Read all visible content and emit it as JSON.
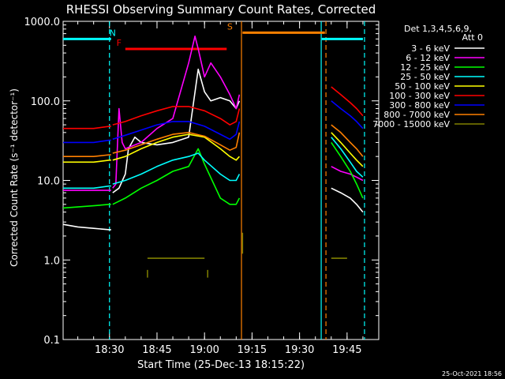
{
  "chart_data": {
    "type": "line",
    "title": "RHESSI Observing Summary Count Rates, Corrected",
    "ylabel": "Corrected Count Rate (s⁻¹ detector⁻¹)",
    "xlabel": "Start Time (25-Dec-13 18:15:22)",
    "y_scale": "log",
    "ylim": [
      0.1,
      1000
    ],
    "xlim": [
      "18:15:22",
      "19:55:00"
    ],
    "yticks": [
      "0.1",
      "1.0",
      "10.0",
      "100.0",
      "1000.0"
    ],
    "xticks": [
      "18:30",
      "18:45",
      "19:00",
      "19:15",
      "19:30",
      "19:45"
    ],
    "legend_header": [
      "Det 1,3,4,5,6,9,",
      "Att 0"
    ],
    "legend_position": "right",
    "timestamp": "25-Oct-2021 18:56",
    "annotations": [
      {
        "text": "N",
        "time": "18:31",
        "color": "#00ffff"
      },
      {
        "text": "F",
        "time": "18:33",
        "color": "#ff0000"
      },
      {
        "text": "S",
        "time": "19:08",
        "color": "#ff8000"
      }
    ],
    "bars": [
      {
        "label": "N",
        "color": "#00ffff",
        "level": 600,
        "segments": [
          [
            "18:15:22",
            "18:30:30"
          ],
          [
            "19:37:00",
            "19:50:00"
          ]
        ]
      },
      {
        "label": "F",
        "color": "#ff0000",
        "level": 450,
        "segments": [
          [
            "18:35:00",
            "19:07:00"
          ]
        ]
      },
      {
        "label": "S",
        "color": "#ff8000",
        "level": 720,
        "segments": [
          [
            "19:12:00",
            "19:38:00"
          ]
        ]
      }
    ],
    "vlines": [
      {
        "time": "18:30:00",
        "color": "#00ffff",
        "style": "dashed"
      },
      {
        "time": "19:11:40",
        "color": "#ff8000",
        "style": "solid"
      },
      {
        "time": "19:36:50",
        "color": "#00ffff",
        "style": "solid"
      },
      {
        "time": "19:38:20",
        "color": "#ff8000",
        "style": "dashed"
      },
      {
        "time": "19:50:30",
        "color": "#00ffff",
        "style": "dashed"
      }
    ],
    "series": [
      {
        "name": "3 - 6 keV",
        "color": "#ffffff",
        "segments": [
          {
            "x": [
              "18:15:22",
              "18:20",
              "18:25",
              "18:30",
              "18:30:30"
            ],
            "y": [
              2.8,
              2.6,
              2.5,
              2.4,
              2.4
            ]
          },
          {
            "x": [
              "18:31",
              "18:33",
              "18:35",
              "18:36",
              "18:38",
              "18:40",
              "18:45",
              "18:50",
              "18:55",
              "18:58",
              "19:00",
              "19:02",
              "19:05",
              "19:08",
              "19:10",
              "19:11"
            ],
            "y": [
              7,
              8,
              12,
              25,
              35,
              30,
              28,
              30,
              35,
              250,
              130,
              100,
              110,
              100,
              80,
              100
            ]
          },
          {
            "x": [
              "19:40",
              "19:43",
              "19:46",
              "19:48",
              "19:50"
            ],
            "y": [
              8,
              7,
              6,
              5,
              4
            ]
          }
        ]
      },
      {
        "name": "6 - 12 keV",
        "color": "#ff00ff",
        "segments": [
          {
            "x": [
              "18:15:22",
              "18:25",
              "18:30",
              "18:30:30"
            ],
            "y": [
              7.5,
              7.5,
              7.5,
              7.5
            ]
          },
          {
            "x": [
              "18:31",
              "18:32",
              "18:33",
              "18:34",
              "18:35",
              "18:40",
              "18:45",
              "18:50",
              "18:55",
              "18:57",
              "18:58",
              "19:00",
              "19:02",
              "19:05",
              "19:08",
              "19:10",
              "19:11"
            ],
            "y": [
              8,
              9,
              80,
              30,
              25,
              30,
              45,
              60,
              300,
              650,
              450,
              200,
              300,
              200,
              120,
              80,
              120
            ]
          },
          {
            "x": [
              "19:40",
              "19:43",
              "19:46",
              "19:48",
              "19:50"
            ],
            "y": [
              15,
              13,
              12,
              11,
              10
            ]
          }
        ]
      },
      {
        "name": "12 - 25 keV",
        "color": "#00ff00",
        "segments": [
          {
            "x": [
              "18:15:22",
              "18:25",
              "18:30",
              "18:30:30"
            ],
            "y": [
              4.5,
              4.8,
              5,
              5
            ]
          },
          {
            "x": [
              "18:31",
              "18:35",
              "18:40",
              "18:45",
              "18:50",
              "18:55",
              "18:58",
              "19:00",
              "19:05",
              "19:08",
              "19:10",
              "19:11"
            ],
            "y": [
              5,
              6,
              8,
              10,
              13,
              15,
              25,
              16,
              6,
              5,
              5,
              6
            ]
          },
          {
            "x": [
              "19:40",
              "19:43",
              "19:46",
              "19:48",
              "19:50"
            ],
            "y": [
              30,
              20,
              13,
              9,
              6
            ]
          }
        ]
      },
      {
        "name": "25 - 50 keV",
        "color": "#00ffff",
        "segments": [
          {
            "x": [
              "18:15:22",
              "18:25",
              "18:30",
              "18:30:30"
            ],
            "y": [
              8,
              8,
              8.5,
              8.5
            ]
          },
          {
            "x": [
              "18:31",
              "18:35",
              "18:40",
              "18:45",
              "18:50",
              "18:55",
              "18:58",
              "19:00",
              "19:05",
              "19:08",
              "19:10",
              "19:11"
            ],
            "y": [
              9,
              10,
              12,
              15,
              18,
              20,
              22,
              18,
              12,
              10,
              10,
              12
            ]
          },
          {
            "x": [
              "19:40",
              "19:43",
              "19:46",
              "19:48",
              "19:50"
            ],
            "y": [
              35,
              25,
              17,
              13,
              11
            ]
          }
        ]
      },
      {
        "name": "50 - 100 keV",
        "color": "#ffff00",
        "segments": [
          {
            "x": [
              "18:15:22",
              "18:25",
              "18:30",
              "18:30:30"
            ],
            "y": [
              17,
              17,
              18,
              18
            ]
          },
          {
            "x": [
              "18:31",
              "18:35",
              "18:40",
              "18:45",
              "18:50",
              "18:55",
              "19:00",
              "19:05",
              "19:08",
              "19:10",
              "19:11"
            ],
            "y": [
              18,
              20,
              25,
              30,
              35,
              38,
              35,
              25,
              20,
              18,
              20
            ]
          },
          {
            "x": [
              "19:40",
              "19:43",
              "19:46",
              "19:48",
              "19:50"
            ],
            "y": [
              40,
              30,
              22,
              18,
              15
            ]
          }
        ]
      },
      {
        "name": "100 - 300 keV",
        "color": "#ff0000",
        "segments": [
          {
            "x": [
              "18:15:22",
              "18:25",
              "18:30",
              "18:30:30"
            ],
            "y": [
              45,
              45,
              48,
              48
            ]
          },
          {
            "x": [
              "18:31",
              "18:35",
              "18:40",
              "18:45",
              "18:50",
              "18:55",
              "19:00",
              "19:05",
              "19:08",
              "19:10",
              "19:11"
            ],
            "y": [
              50,
              55,
              65,
              75,
              85,
              85,
              75,
              60,
              50,
              55,
              80
            ]
          },
          {
            "x": [
              "19:40",
              "19:43",
              "19:46",
              "19:48",
              "19:50"
            ],
            "y": [
              150,
              120,
              95,
              80,
              65
            ]
          }
        ]
      },
      {
        "name": "300 - 800 keV",
        "color": "#0000ff",
        "segments": [
          {
            "x": [
              "18:15:22",
              "18:25",
              "18:30",
              "18:30:30"
            ],
            "y": [
              30,
              30,
              32,
              32
            ]
          },
          {
            "x": [
              "18:31",
              "18:35",
              "18:40",
              "18:45",
              "18:50",
              "18:55",
              "19:00",
              "19:05",
              "19:08",
              "19:10",
              "19:11"
            ],
            "y": [
              33,
              37,
              43,
              50,
              55,
              55,
              48,
              38,
              33,
              38,
              55
            ]
          },
          {
            "x": [
              "19:40",
              "19:43",
              "19:46",
              "19:48",
              "19:50"
            ],
            "y": [
              100,
              80,
              65,
              55,
              45
            ]
          }
        ]
      },
      {
        "name": "800 - 7000 keV",
        "color": "#ff8000",
        "segments": [
          {
            "x": [
              "18:15:22",
              "18:25",
              "18:30",
              "18:30:30"
            ],
            "y": [
              20,
              20,
              21,
              21
            ]
          },
          {
            "x": [
              "18:31",
              "18:35",
              "18:40",
              "18:45",
              "18:50",
              "18:55",
              "19:00",
              "19:05",
              "19:08",
              "19:10",
              "19:11"
            ],
            "y": [
              22,
              24,
              28,
              33,
              38,
              40,
              36,
              28,
              24,
              26,
              40
            ]
          },
          {
            "x": [
              "19:40",
              "19:43",
              "19:46",
              "19:48",
              "19:50"
            ],
            "y": [
              50,
              40,
              30,
              25,
              20
            ]
          }
        ]
      },
      {
        "name": "7000 - 15000 keV",
        "color": "#808000",
        "segments": [
          {
            "x": [
              "18:42",
              "18:50",
              "18:55",
              "19:00"
            ],
            "y": [
              1.05,
              1.05,
              1.05,
              1.05
            ]
          },
          {
            "x": [
              "19:40",
              "19:42",
              "19:45"
            ],
            "y": [
              1.05,
              1.05,
              1.05
            ]
          }
        ],
        "spikes": [
          {
            "x": "18:42",
            "y": [
              0.6,
              0.75
            ]
          },
          {
            "x": "19:01",
            "y": [
              0.6,
              0.75
            ]
          },
          {
            "x": "19:12",
            "y": [
              1.2,
              2.2
            ]
          }
        ]
      }
    ]
  }
}
